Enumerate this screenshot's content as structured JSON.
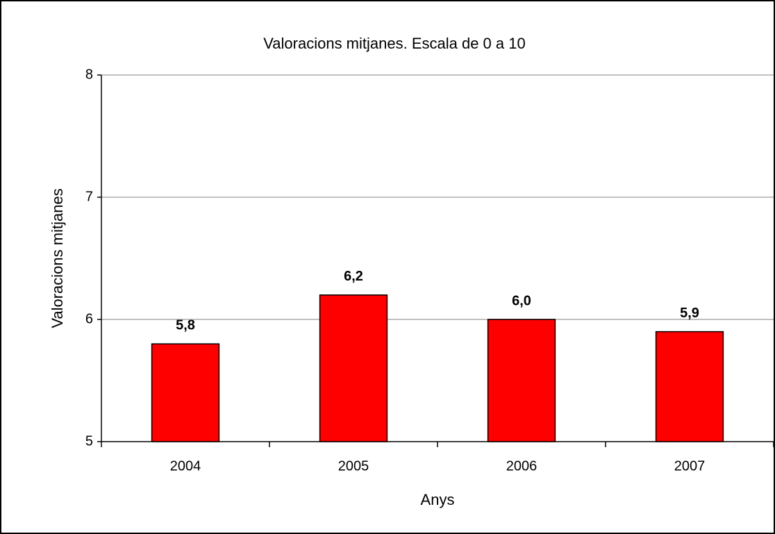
{
  "chart_data": {
    "type": "bar",
    "title": "Valoracions mitjanes. Escala de 0 a 10",
    "x_label": "Anys",
    "y_label": "Valoracions mitjanes",
    "categories": [
      "2004",
      "2005",
      "2006",
      "2007"
    ],
    "values": [
      5.8,
      6.2,
      6.0,
      5.9
    ],
    "value_labels": [
      "5,8",
      "6,2",
      "6,0",
      "5,9"
    ],
    "color": "#ff0000",
    "ylim": [
      5,
      8
    ],
    "yticks": [
      5,
      6,
      7,
      8
    ],
    "grid": true
  }
}
